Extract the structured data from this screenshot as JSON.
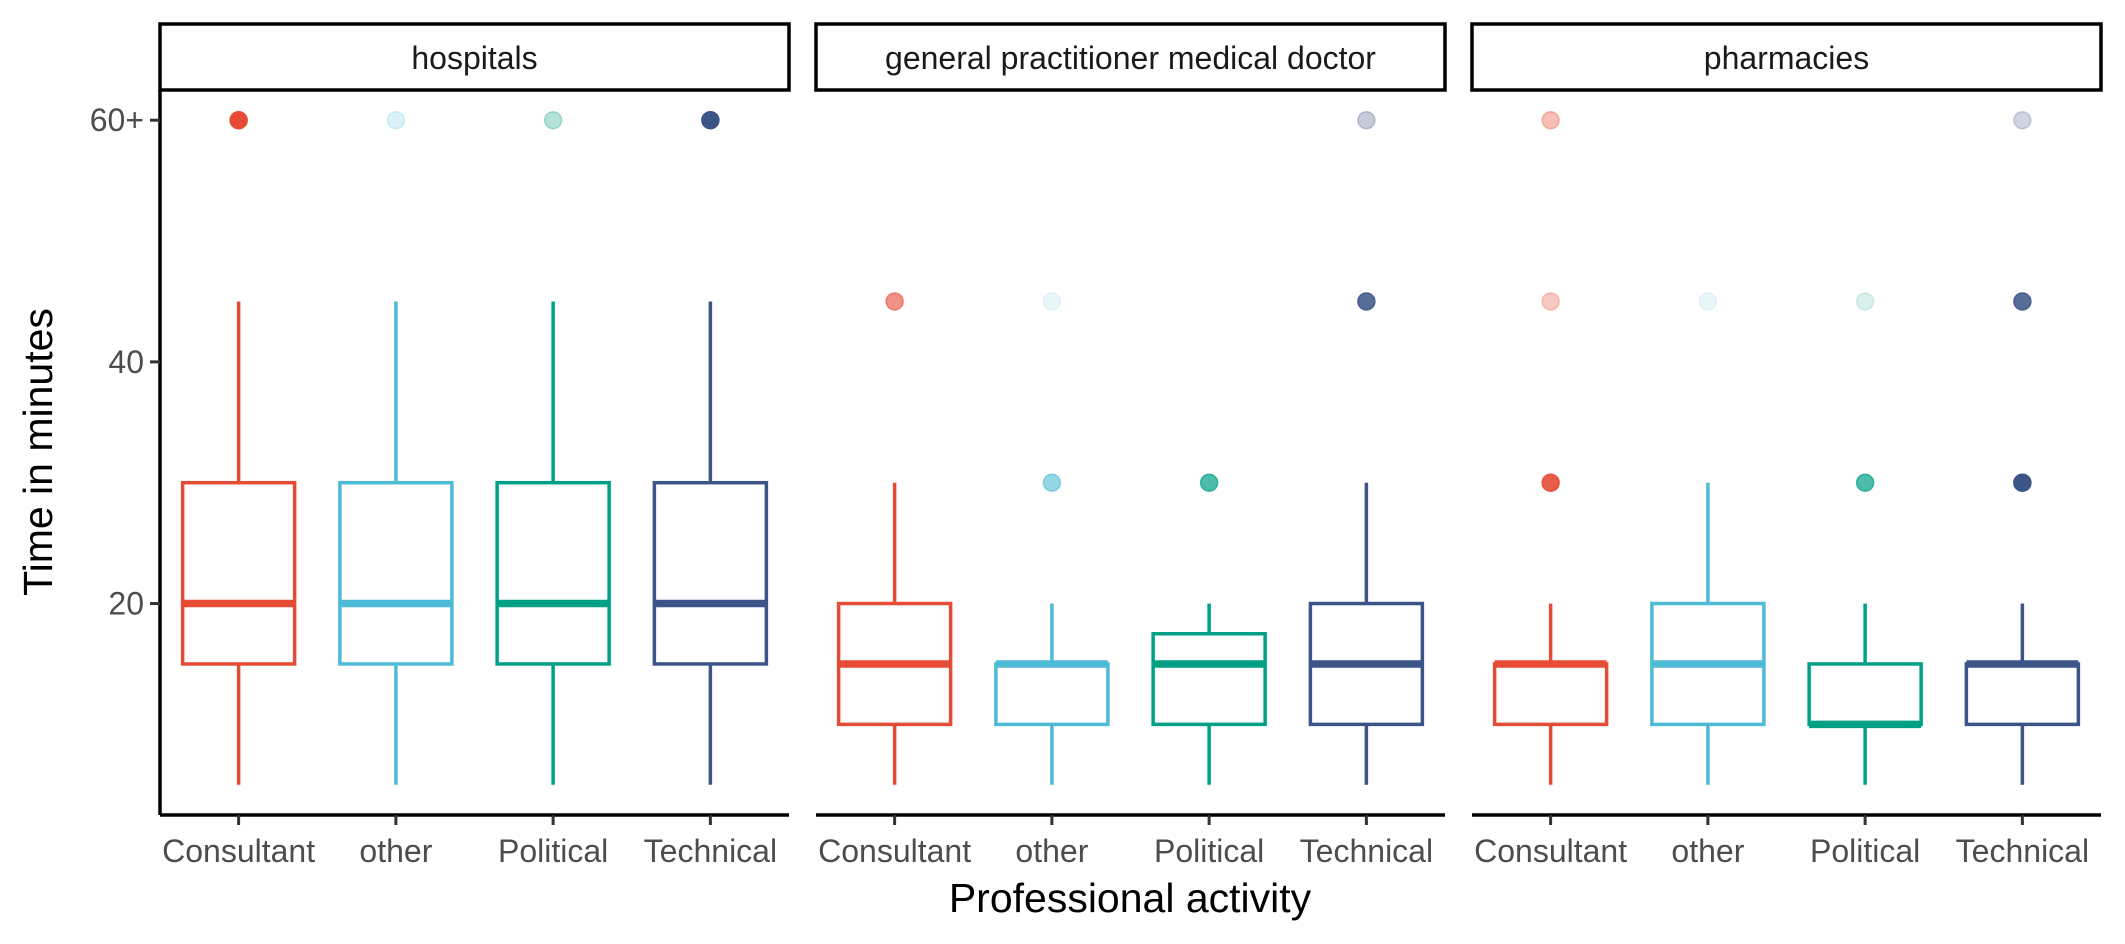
{
  "chart_data": {
    "type": "boxplot",
    "xlabel": "Professional activity",
    "ylabel": "Time in minutes",
    "yticks": [
      {
        "value": 20,
        "label": "20"
      },
      {
        "value": 40,
        "label": "40"
      },
      {
        "value": 60,
        "label": "60+"
      }
    ],
    "ylim": [
      2.5,
      62.5
    ],
    "categories": [
      "Consultant",
      "other",
      "Political",
      "Technical"
    ],
    "colors": {
      "Consultant": "#E64B35",
      "other": "#4DBBD5",
      "Political": "#00A087",
      "Technical": "#3C5488"
    },
    "grid": false,
    "legend": "none",
    "panels": [
      {
        "title": "hospitals",
        "boxes": [
          {
            "category": "Consultant",
            "min": 5,
            "q1": 15,
            "median": 20,
            "q3": 30,
            "max": 45,
            "outliers": [
              {
                "y": 60,
                "opacity": 1.0
              }
            ]
          },
          {
            "category": "other",
            "min": 5,
            "q1": 15,
            "median": 20,
            "q3": 30,
            "max": 45,
            "outliers": [
              {
                "y": 60,
                "opacity": 0.2
              }
            ]
          },
          {
            "category": "Political",
            "min": 5,
            "q1": 15,
            "median": 20,
            "q3": 30,
            "max": 45,
            "outliers": [
              {
                "y": 60,
                "opacity": 0.3
              }
            ]
          },
          {
            "category": "Technical",
            "min": 5,
            "q1": 15,
            "median": 20,
            "q3": 30,
            "max": 45,
            "outliers": [
              {
                "y": 60,
                "opacity": 1.0
              }
            ]
          }
        ]
      },
      {
        "title": "general practitioner medical doctor",
        "boxes": [
          {
            "category": "Consultant",
            "min": 5,
            "q1": 10,
            "median": 15,
            "q3": 20,
            "max": 30,
            "outliers": [
              {
                "y": 45,
                "opacity": 0.6
              }
            ]
          },
          {
            "category": "other",
            "min": 5,
            "q1": 10,
            "median": 15,
            "q3": 15,
            "max": 20,
            "outliers": [
              {
                "y": 30,
                "opacity": 0.6
              },
              {
                "y": 45,
                "opacity": 0.12
              }
            ]
          },
          {
            "category": "Political",
            "min": 5,
            "q1": 10,
            "median": 15,
            "q3": 17.5,
            "max": 20,
            "outliers": [
              {
                "y": 30,
                "opacity": 0.7
              }
            ]
          },
          {
            "category": "Technical",
            "min": 5,
            "q1": 10,
            "median": 15,
            "q3": 20,
            "max": 30,
            "outliers": [
              {
                "y": 45,
                "opacity": 0.85
              },
              {
                "y": 60,
                "opacity": 0.3
              }
            ]
          }
        ]
      },
      {
        "title": "pharmacies",
        "boxes": [
          {
            "category": "Consultant",
            "min": 5,
            "q1": 10,
            "median": 15,
            "q3": 15,
            "max": 20,
            "outliers": [
              {
                "y": 30,
                "opacity": 0.9
              },
              {
                "y": 45,
                "opacity": 0.3
              },
              {
                "y": 60,
                "opacity": 0.35
              }
            ]
          },
          {
            "category": "other",
            "min": 5,
            "q1": 10,
            "median": 15,
            "q3": 20,
            "max": 30,
            "outliers": [
              {
                "y": 45,
                "opacity": 0.12
              }
            ]
          },
          {
            "category": "Political",
            "min": 5,
            "q1": 10,
            "median": 10,
            "q3": 15,
            "max": 20,
            "outliers": [
              {
                "y": 30,
                "opacity": 0.7
              },
              {
                "y": 45,
                "opacity": 0.15
              }
            ]
          },
          {
            "category": "Technical",
            "min": 5,
            "q1": 10,
            "median": 15,
            "q3": 15,
            "max": 20,
            "outliers": [
              {
                "y": 30,
                "opacity": 1.0
              },
              {
                "y": 45,
                "opacity": 0.85
              },
              {
                "y": 60,
                "opacity": 0.25
              }
            ]
          }
        ]
      }
    ]
  }
}
